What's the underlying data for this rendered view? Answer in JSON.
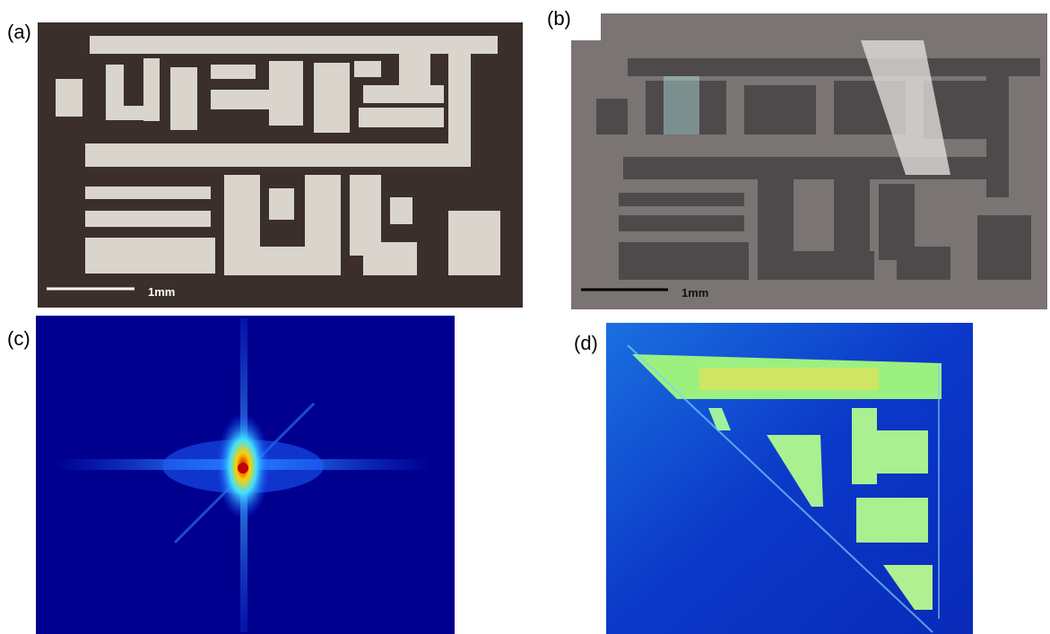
{
  "panels": [
    {
      "label": "(a)",
      "scale_bar": "1mm"
    },
    {
      "label": "(b)",
      "scale_bar": "1mm"
    },
    {
      "label": "(c)"
    },
    {
      "label": "(d)"
    }
  ]
}
